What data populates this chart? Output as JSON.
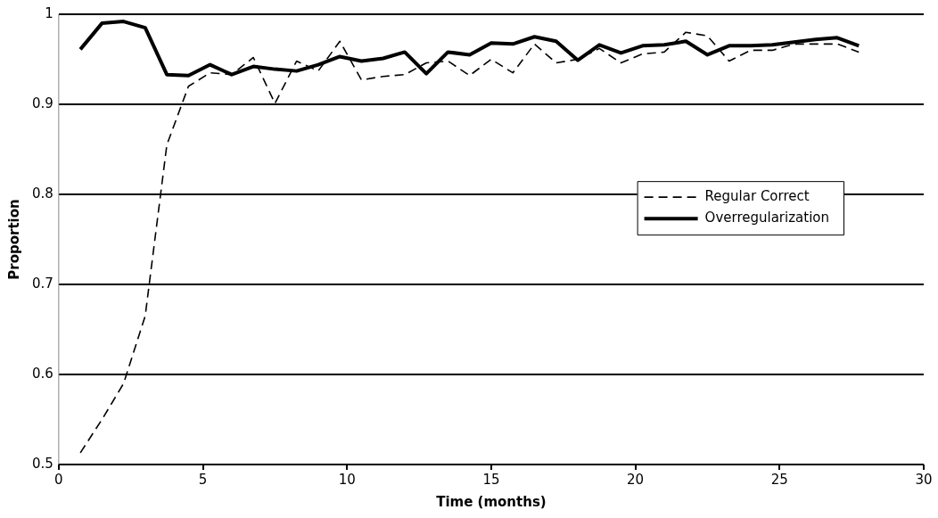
{
  "chart_data": {
    "type": "line",
    "xlabel": "Time (months)",
    "ylabel": "Proportion",
    "x": [
      0.75,
      1.5,
      2.25,
      3,
      3.75,
      4.5,
      5.25,
      6,
      6.75,
      7.5,
      8.25,
      9,
      9.75,
      10.5,
      11.25,
      12,
      12.75,
      13.5,
      14.25,
      15,
      15.75,
      16.5,
      17.25,
      18,
      18.75,
      19.5,
      20.25,
      21,
      21.75,
      22.5,
      23.25,
      24,
      24.75,
      25.5,
      26.25,
      27,
      27.75
    ],
    "series": [
      {
        "name": "Regular Correct",
        "color": "#000000",
        "line_style": "dashed",
        "values": [
          0.513,
          0.55,
          0.59,
          0.665,
          0.855,
          0.92,
          0.935,
          0.933,
          0.952,
          0.901,
          0.948,
          0.937,
          0.97,
          0.927,
          0.931,
          0.933,
          0.946,
          0.948,
          0.932,
          0.95,
          0.935,
          0.967,
          0.946,
          0.95,
          0.962,
          0.946,
          0.956,
          0.958,
          0.98,
          0.976,
          0.948,
          0.96,
          0.96,
          0.967,
          0.967,
          0.967,
          0.958
        ]
      },
      {
        "name": "Overregularization",
        "color": "#000000",
        "line_style": "solid",
        "values": [
          0.961,
          0.99,
          0.992,
          0.985,
          0.933,
          0.932,
          0.944,
          0.933,
          0.942,
          0.939,
          0.937,
          0.944,
          0.953,
          0.948,
          0.951,
          0.958,
          0.934,
          0.958,
          0.955,
          0.968,
          0.967,
          0.975,
          0.97,
          0.949,
          0.966,
          0.957,
          0.965,
          0.966,
          0.97,
          0.955,
          0.965,
          0.965,
          0.966,
          0.969,
          0.972,
          0.974,
          0.965
        ]
      }
    ],
    "xlim": [
      0,
      30
    ],
    "xticks": [
      0,
      5,
      10,
      15,
      20,
      25,
      30
    ],
    "ylim": [
      0.5,
      1
    ],
    "yticks": [
      0.5,
      0.6,
      0.7,
      0.8,
      0.9,
      1
    ],
    "grid": "y",
    "legend": "right",
    "marker": "none"
  }
}
